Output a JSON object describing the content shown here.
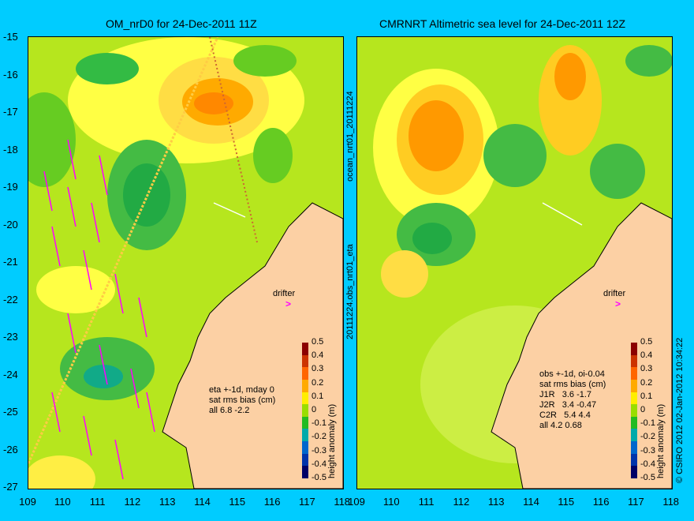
{
  "left_panel": {
    "title": "OM_nrD0 for 24-Dec-2011 11Z",
    "side_label": "20111224.obs_nrt01_eta",
    "notes": [
      "eta +-1d, mday 0",
      "sat rms bias (cm)",
      "all 6.8 -2.2"
    ]
  },
  "right_panel": {
    "title": "CMRNRT Altimetric sea level  for 24-Dec-2011 12Z",
    "side_label": "ocean_nrt01_20111224",
    "notes": [
      "obs +-1d, oi-0.04",
      "sat rms bias (cm)",
      "J1R   3.6 -1.7",
      "J2R   3.4 -0.47",
      "C2R   5.4 4.4",
      "all 4.2 0.68"
    ]
  },
  "drifter_label": "drifter",
  "copyright": "© CSIRO 2012  02-Jan-2012 10:34:22",
  "colorbar": {
    "title": "height anomaly (m)",
    "ticks": [
      "0.5",
      "0.4",
      "0.3",
      "0.2",
      "0.1",
      "0",
      "-0.1",
      "-0.2",
      "-0.3",
      "-0.4",
      "-0.5"
    ],
    "colors": [
      "#8b0000",
      "#cc3300",
      "#ff6600",
      "#ffaa00",
      "#ffee00",
      "#99dd00",
      "#22bb22",
      "#00aaaa",
      "#0066cc",
      "#0033aa",
      "#000066"
    ]
  },
  "axes": {
    "y_ticks": [
      "-15",
      "-16",
      "-17",
      "-18",
      "-19",
      "-20",
      "-21",
      "-22",
      "-23",
      "-24",
      "-25",
      "-26",
      "-27"
    ],
    "x_ticks": [
      "109",
      "110",
      "111",
      "112",
      "113",
      "114",
      "115",
      "116",
      "117",
      "118"
    ]
  },
  "colors": {
    "background": "#00ccff",
    "land": "#fcd0a4",
    "velocity_arrows": "#ff00ff"
  }
}
